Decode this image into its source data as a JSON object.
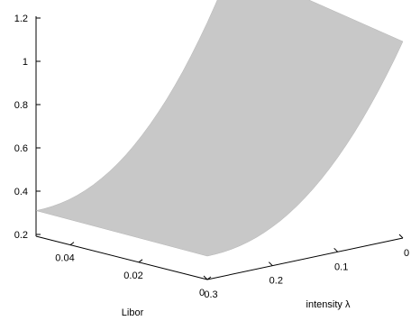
{
  "chart_data": {
    "type": "surface",
    "title": "",
    "xlabel": "Libor",
    "ylabel": "intensity λ",
    "zlabel": "",
    "x_ticks": [
      "0",
      "0.02",
      "0.04"
    ],
    "y_ticks": [
      "0",
      "0.1",
      "0.2",
      "0.3"
    ],
    "z_ticks": [
      "0.2",
      "0.4",
      "0.6",
      "0.8",
      "1",
      "1.2"
    ],
    "xlim": [
      0,
      0.05
    ],
    "ylim": [
      0,
      0.3
    ],
    "zlim": [
      0.2,
      1.2
    ],
    "surface_color": "#c8c8c8",
    "corners": [
      {
        "libor": 0.05,
        "intensity": 0.3,
        "value": 0.31
      },
      {
        "libor": 0.0,
        "intensity": 0.3,
        "value": 0.3
      },
      {
        "libor": 0.05,
        "intensity": 0.0,
        "value": 1.25
      },
      {
        "libor": 0.0,
        "intensity": 0.0,
        "value": 1.1
      }
    ],
    "shape": "value increases convexly as intensity decreases; nearly flat in Libor"
  }
}
